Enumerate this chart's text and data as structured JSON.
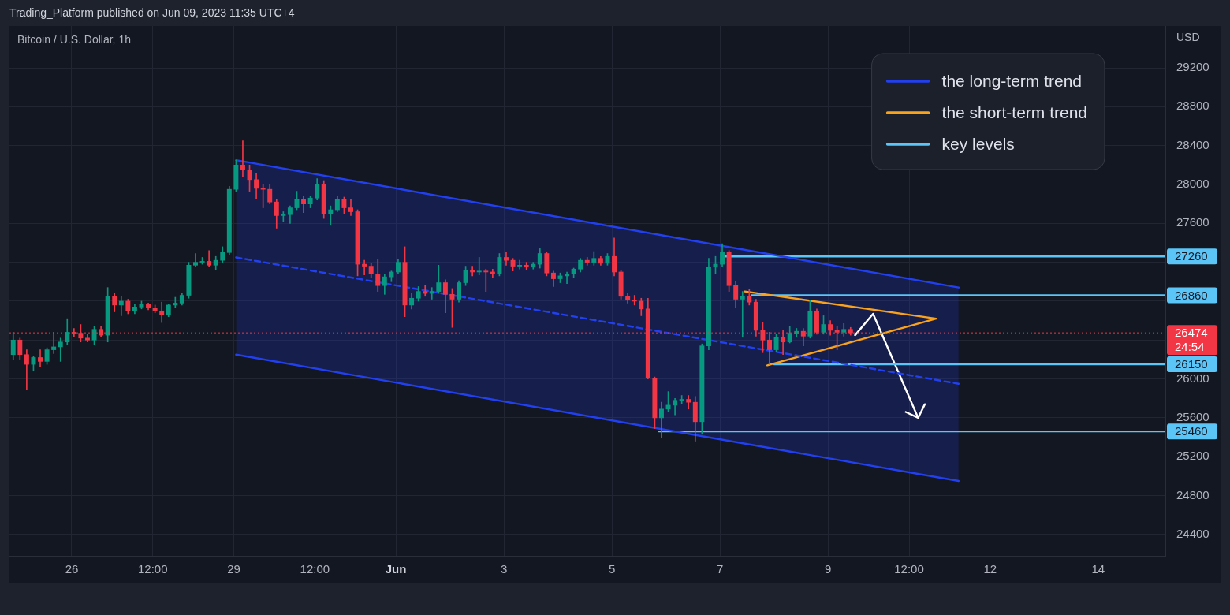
{
  "chart_data": {
    "type": "candlestick",
    "title": "Bitcoin / U.S. Dollar, 1h",
    "ylabel": "USD",
    "annotations": [
      "Trading_Platform published on Jun 09, 2023 11:35 UTC+4"
    ],
    "x": [
      "2023-05-24T22:00",
      "2023-05-25T01:00",
      "2023-05-25T04:00",
      "2023-05-25T07:00",
      "2023-05-25T10:00",
      "2023-05-25T13:00",
      "2023-05-25T16:00",
      "2023-05-25T19:00",
      "2023-05-25T22:00",
      "2023-05-26T01:00",
      "2023-05-26T04:00",
      "2023-05-26T07:00",
      "2023-05-26T10:00",
      "2023-05-26T13:00",
      "2023-05-26T16:00",
      "2023-05-26T19:00",
      "2023-05-26T22:00",
      "2023-05-27T01:00",
      "2023-05-27T04:00",
      "2023-05-27T07:00",
      "2023-05-27T10:00",
      "2023-05-27T13:00",
      "2023-05-27T16:00",
      "2023-05-27T19:00",
      "2023-05-27T22:00",
      "2023-05-28T01:00",
      "2023-05-28T04:00",
      "2023-05-28T07:00",
      "2023-05-28T10:00",
      "2023-05-28T13:00",
      "2023-05-28T16:00",
      "2023-05-28T19:00",
      "2023-05-28T22:00",
      "2023-05-29T01:00",
      "2023-05-29T04:00",
      "2023-05-29T07:00",
      "2023-05-29T10:00",
      "2023-05-29T13:00",
      "2023-05-29T16:00",
      "2023-05-29T19:00",
      "2023-05-29T22:00",
      "2023-05-30T01:00",
      "2023-05-30T04:00",
      "2023-05-30T07:00",
      "2023-05-30T10:00",
      "2023-05-30T13:00",
      "2023-05-30T16:00",
      "2023-05-30T19:00",
      "2023-05-30T22:00",
      "2023-05-31T01:00",
      "2023-05-31T04:00",
      "2023-05-31T07:00",
      "2023-05-31T10:00",
      "2023-05-31T13:00",
      "2023-05-31T16:00",
      "2023-05-31T19:00",
      "2023-05-31T22:00",
      "2023-06-01T01:00",
      "2023-06-01T04:00",
      "2023-06-01T07:00",
      "2023-06-01T10:00",
      "2023-06-01T13:00",
      "2023-06-01T16:00",
      "2023-06-01T19:00",
      "2023-06-01T22:00",
      "2023-06-02T01:00",
      "2023-06-02T04:00",
      "2023-06-02T07:00",
      "2023-06-02T10:00",
      "2023-06-02T13:00",
      "2023-06-02T16:00",
      "2023-06-02T19:00",
      "2023-06-02T22:00",
      "2023-06-03T01:00",
      "2023-06-03T04:00",
      "2023-06-03T07:00",
      "2023-06-03T10:00",
      "2023-06-03T13:00",
      "2023-06-03T16:00",
      "2023-06-03T19:00",
      "2023-06-03T22:00",
      "2023-06-04T01:00",
      "2023-06-04T04:00",
      "2023-06-04T07:00",
      "2023-06-04T10:00",
      "2023-06-04T13:00",
      "2023-06-04T16:00",
      "2023-06-04T19:00",
      "2023-06-04T22:00",
      "2023-06-05T01:00",
      "2023-06-05T04:00",
      "2023-06-05T07:00",
      "2023-06-05T10:00",
      "2023-06-05T13:00",
      "2023-06-05T16:00",
      "2023-06-05T19:00",
      "2023-06-05T22:00",
      "2023-06-06T01:00",
      "2023-06-06T04:00",
      "2023-06-06T07:00",
      "2023-06-06T10:00",
      "2023-06-06T13:00",
      "2023-06-06T16:00",
      "2023-06-06T19:00",
      "2023-06-06T22:00",
      "2023-06-07T01:00",
      "2023-06-07T04:00",
      "2023-06-07T07:00",
      "2023-06-07T10:00",
      "2023-06-07T13:00",
      "2023-06-07T16:00",
      "2023-06-07T19:00",
      "2023-06-07T22:00",
      "2023-06-08T01:00",
      "2023-06-08T04:00",
      "2023-06-08T07:00",
      "2023-06-08T10:00",
      "2023-06-08T13:00",
      "2023-06-08T16:00",
      "2023-06-08T19:00",
      "2023-06-08T22:00",
      "2023-06-09T01:00",
      "2023-06-09T04:00",
      "2023-06-09T07:00",
      "2023-06-09T10:00"
    ],
    "ohlc": [
      [
        26250,
        26480,
        26200,
        26400
      ],
      [
        26400,
        26420,
        26200,
        26250
      ],
      [
        26250,
        26300,
        25890,
        26150
      ],
      [
        26150,
        26230,
        26080,
        26220
      ],
      [
        26220,
        26300,
        26120,
        26180
      ],
      [
        26180,
        26320,
        26150,
        26300
      ],
      [
        26300,
        26480,
        26260,
        26330
      ],
      [
        26330,
        26420,
        26180,
        26380
      ],
      [
        26380,
        26620,
        26350,
        26480
      ],
      [
        26480,
        26520,
        26430,
        26470
      ],
      [
        26470,
        26560,
        26380,
        26420
      ],
      [
        26420,
        26460,
        26380,
        26400
      ],
      [
        26400,
        26540,
        26350,
        26510
      ],
      [
        26510,
        26540,
        26430,
        26450
      ],
      [
        26450,
        26940,
        26380,
        26850
      ],
      [
        26850,
        26880,
        26690,
        26760
      ],
      [
        26760,
        26850,
        26650,
        26800
      ],
      [
        26800,
        26820,
        26670,
        26700
      ],
      [
        26700,
        26770,
        26670,
        26740
      ],
      [
        26740,
        26800,
        26720,
        26770
      ],
      [
        26770,
        26780,
        26710,
        26730
      ],
      [
        26730,
        26760,
        26680,
        26700
      ],
      [
        26700,
        26790,
        26580,
        26660
      ],
      [
        26660,
        26770,
        26640,
        26760
      ],
      [
        26760,
        26840,
        26730,
        26780
      ],
      [
        26780,
        26880,
        26760,
        26860
      ],
      [
        26860,
        27200,
        26830,
        27170
      ],
      [
        27170,
        27290,
        27150,
        27200
      ],
      [
        27200,
        27250,
        27180,
        27210
      ],
      [
        27210,
        27320,
        27150,
        27170
      ],
      [
        27170,
        27260,
        27120,
        27220
      ],
      [
        27220,
        27360,
        27200,
        27300
      ],
      [
        27300,
        27980,
        27280,
        27950
      ],
      [
        27950,
        28250,
        27930,
        28200
      ],
      [
        28200,
        28450,
        28080,
        28150
      ],
      [
        28150,
        28200,
        27930,
        28050
      ],
      [
        28050,
        28110,
        27850,
        27960
      ],
      [
        27960,
        28000,
        27760,
        27950
      ],
      [
        27950,
        28000,
        27800,
        27820
      ],
      [
        27820,
        27850,
        27550,
        27680
      ],
      [
        27680,
        27720,
        27620,
        27690
      ],
      [
        27690,
        27780,
        27600,
        27760
      ],
      [
        27760,
        27930,
        27740,
        27850
      ],
      [
        27850,
        27880,
        27710,
        27800
      ],
      [
        27800,
        27880,
        27760,
        27860
      ],
      [
        27860,
        28060,
        27840,
        28000
      ],
      [
        28000,
        28040,
        27650,
        27700
      ],
      [
        27700,
        27780,
        27580,
        27740
      ],
      [
        27740,
        27880,
        27720,
        27850
      ],
      [
        27850,
        27870,
        27700,
        27760
      ],
      [
        27760,
        27850,
        27680,
        27720
      ],
      [
        27720,
        27740,
        27060,
        27180
      ],
      [
        27180,
        27220,
        27070,
        27160
      ],
      [
        27160,
        27190,
        27040,
        27080
      ],
      [
        27080,
        27230,
        26900,
        26960
      ],
      [
        26960,
        27080,
        26870,
        27050
      ],
      [
        27050,
        27110,
        27000,
        27100
      ],
      [
        27100,
        27230,
        27080,
        27200
      ],
      [
        27200,
        27360,
        26640,
        26760
      ],
      [
        26760,
        26880,
        26720,
        26830
      ],
      [
        26830,
        26950,
        26800,
        26900
      ],
      [
        26900,
        26960,
        26850,
        26880
      ],
      [
        26880,
        26940,
        26820,
        26900
      ],
      [
        26900,
        27170,
        26880,
        26990
      ],
      [
        26990,
        27020,
        26680,
        26870
      ],
      [
        26870,
        26930,
        26530,
        26820
      ],
      [
        26820,
        27010,
        26790,
        26990
      ],
      [
        26990,
        27160,
        26960,
        27120
      ],
      [
        27120,
        27160,
        27060,
        27100
      ],
      [
        27100,
        27250,
        27070,
        27110
      ],
      [
        27110,
        27130,
        26900,
        27100
      ],
      [
        27100,
        27130,
        27040,
        27080
      ],
      [
        27080,
        27290,
        27060,
        27250
      ],
      [
        27250,
        27300,
        27170,
        27220
      ],
      [
        27220,
        27240,
        27110,
        27160
      ],
      [
        27160,
        27220,
        27130,
        27170
      ],
      [
        27170,
        27200,
        27120,
        27150
      ],
      [
        27150,
        27200,
        27130,
        27180
      ],
      [
        27180,
        27340,
        27140,
        27290
      ],
      [
        27290,
        27300,
        27060,
        27090
      ],
      [
        27090,
        27110,
        26950,
        27030
      ],
      [
        27030,
        27090,
        26990,
        27060
      ],
      [
        27060,
        27100,
        26980,
        27080
      ],
      [
        27080,
        27140,
        27040,
        27130
      ],
      [
        27130,
        27240,
        27100,
        27220
      ],
      [
        27220,
        27250,
        27170,
        27200
      ],
      [
        27200,
        27310,
        27170,
        27240
      ],
      [
        27240,
        27260,
        27170,
        27190
      ],
      [
        27190,
        27290,
        27170,
        27260
      ],
      [
        27260,
        27450,
        27060,
        27100
      ],
      [
        27100,
        27120,
        26820,
        26850
      ],
      [
        26850,
        26880,
        26780,
        26810
      ],
      [
        26810,
        26860,
        26760,
        26800
      ],
      [
        26800,
        26830,
        26650,
        26720
      ],
      [
        26720,
        26830,
        26000,
        26010
      ],
      [
        26010,
        26020,
        25490,
        25600
      ],
      [
        25600,
        25760,
        25400,
        25690
      ],
      [
        25690,
        25870,
        25660,
        25730
      ],
      [
        25730,
        25800,
        25630,
        25780
      ],
      [
        25780,
        25830,
        25740,
        25790
      ],
      [
        25790,
        25830,
        25690,
        25760
      ],
      [
        25760,
        25820,
        25360,
        25560
      ],
      [
        25560,
        26360,
        25430,
        26340
      ],
      [
        26340,
        27240,
        26300,
        27150
      ],
      [
        27150,
        27260,
        27080,
        27180
      ],
      [
        27180,
        27390,
        27150,
        27300
      ],
      [
        27300,
        27320,
        26900,
        26960
      ],
      [
        26960,
        27000,
        26730,
        26820
      ],
      [
        26820,
        26900,
        26430,
        26850
      ],
      [
        26850,
        26920,
        26760,
        26790
      ],
      [
        26790,
        26820,
        26440,
        26500
      ],
      [
        26500,
        26580,
        26270,
        26400
      ],
      [
        26400,
        26480,
        26150,
        26300
      ],
      [
        26300,
        26460,
        26280,
        26430
      ],
      [
        26430,
        26500,
        26250,
        26380
      ],
      [
        26380,
        26540,
        26370,
        26470
      ],
      [
        26470,
        26520,
        26430,
        26490
      ],
      [
        26490,
        26520,
        26340,
        26440
      ],
      [
        26440,
        26810,
        26420,
        26700
      ],
      [
        26700,
        26720,
        26460,
        26480
      ],
      [
        26480,
        26650,
        26460,
        26560
      ],
      [
        26560,
        26600,
        26450,
        26500
      ],
      [
        26500,
        26540,
        26300,
        26480
      ],
      [
        26480,
        26570,
        26440,
        26510
      ],
      [
        26510,
        26530,
        26450,
        26474
      ]
    ],
    "colors": [
      "#089981",
      "#f23645",
      "#f23645",
      "#089981",
      "#f23645",
      "#089981",
      "#089981",
      "#089981",
      "#089981",
      "#f23645",
      "#f23645",
      "#f23645",
      "#089981",
      "#f23645",
      "#089981",
      "#f23645",
      "#089981",
      "#f23645",
      "#089981",
      "#089981",
      "#f23645",
      "#f23645",
      "#f23645",
      "#089981",
      "#089981",
      "#089981",
      "#089981",
      "#089981",
      "#089981",
      "#f23645",
      "#089981",
      "#089981",
      "#089981",
      "#089981",
      "#f23645",
      "#f23645",
      "#f23645",
      "#f23645",
      "#f23645",
      "#f23645",
      "#089981",
      "#089981",
      "#089981",
      "#f23645",
      "#089981",
      "#089981",
      "#f23645",
      "#089981",
      "#089981",
      "#f23645",
      "#f23645",
      "#f23645",
      "#f23645",
      "#f23645",
      "#f23645",
      "#089981",
      "#089981",
      "#089981",
      "#f23645",
      "#089981",
      "#089981",
      "#f23645",
      "#089981",
      "#089981",
      "#f23645",
      "#f23645",
      "#089981",
      "#089981",
      "#f23645",
      "#089981",
      "#f23645",
      "#f23645",
      "#089981",
      "#f23645",
      "#f23645",
      "#089981",
      "#f23645",
      "#089981",
      "#089981",
      "#f23645",
      "#f23645",
      "#089981",
      "#089981",
      "#089981",
      "#089981",
      "#f23645",
      "#089981",
      "#f23645",
      "#089981",
      "#f23645",
      "#f23645",
      "#f23645",
      "#f23645",
      "#f23645",
      "#f23645",
      "#f23645",
      "#089981",
      "#089981",
      "#089981",
      "#089981",
      "#f23645",
      "#f23645",
      "#089981",
      "#089981",
      "#089981",
      "#089981",
      "#f23645",
      "#f23645",
      "#089981",
      "#f23645",
      "#f23645",
      "#f23645",
      "#f23645",
      "#089981",
      "#f23645",
      "#089981",
      "#089981",
      "#f23645",
      "#089981",
      "#f23645",
      "#089981",
      "#f23645",
      "#f23645",
      "#089981",
      "#f23645"
    ],
    "series": [
      {
        "name": "the long-term trend",
        "type": "line",
        "color": "#2340f0",
        "line_style": "dashed",
        "x": [
          "2023-05-29T01:00",
          "2023-06-11T10:00"
        ],
        "values": [
          27250,
          25950
        ],
        "lower": [
          26250,
          24950
        ],
        "upper": [
          28250,
          26940
        ]
      },
      {
        "type": "line",
        "color": "#2340f0",
        "x": [
          "2023-05-29T01:00",
          "2023-06-11T10:00"
        ],
        "values": [
          28250,
          26940
        ]
      },
      {
        "type": "line",
        "color": "#2340f0",
        "x": [
          "2023-05-29T01:00",
          "2023-06-11T10:00"
        ],
        "values": [
          26250,
          24950
        ]
      },
      {
        "name": "the short-term trend",
        "type": "line",
        "color": "#f9a21b",
        "x": [
          "2023-06-07T11:00",
          "2023-06-11T00:00",
          "2023-06-07T21:00"
        ],
        "values": [
          26900,
          26620,
          26140
        ]
      },
      {
        "name": "key levels",
        "type": "line",
        "color": "#5bc5f8",
        "x": [
          "2023-06-07T02:00",
          "2023-06-15T05:50"
        ],
        "values": [
          27260,
          27260
        ],
        "value_labels": [
          null,
          "27260"
        ]
      },
      {
        "type": "line",
        "color": "#5bc5f8",
        "x": [
          "2023-06-07T14:00",
          "2023-06-15T05:50"
        ],
        "values": [
          26860,
          26860
        ],
        "value_labels": [
          null,
          "26860"
        ]
      },
      {
        "type": "line",
        "color": "#5bc5f8",
        "x": [
          "2023-06-08T00:00",
          "2023-06-15T05:50"
        ],
        "values": [
          26150,
          26150
        ],
        "value_labels": [
          null,
          "26150"
        ]
      },
      {
        "type": "line",
        "color": "#5bc5f8",
        "x": [
          "2023-06-05T21:00",
          "2023-06-15T05:50"
        ],
        "values": [
          25460,
          25460
        ],
        "value_labels": [
          null,
          "25460"
        ]
      },
      {
        "type": "line",
        "color": "#ffffff",
        "x": [
          "2023-06-09T12:00",
          "2023-06-09T20:00",
          "2023-06-10T16:00",
          "2023-06-10T10:30",
          "2023-06-10T16:00",
          "2023-06-10T19:00"
        ],
        "values": [
          26450,
          26670,
          25600,
          25660,
          25600,
          25740
        ]
      }
    ],
    "ref_lines": [
      {
        "axis": "y",
        "value": 26474,
        "label": "26474\n24:54",
        "color": "#f23645",
        "line_style": "dotted"
      }
    ],
    "xlim": [
      "2023-05-24T20:20",
      "2023-06-15T05:50"
    ],
    "xticks": [
      {
        "value": "2023-05-26",
        "label": "26"
      },
      {
        "value": "2023-05-27T12:00",
        "label": "12:00"
      },
      {
        "value": "2023-05-29",
        "label": "29"
      },
      {
        "value": "2023-05-30T12:00",
        "label": "12:00"
      },
      {
        "value": "2023-06-01",
        "label": "Jun"
      },
      {
        "value": "2023-06-03",
        "label": "3"
      },
      {
        "value": "2023-06-05",
        "label": "5"
      },
      {
        "value": "2023-06-07",
        "label": "7"
      },
      {
        "value": "2023-06-09",
        "label": "9"
      },
      {
        "value": "2023-06-10T12:00",
        "label": "12:00"
      },
      {
        "value": "2023-06-12",
        "label": "12"
      },
      {
        "value": "2023-06-14",
        "label": "14"
      }
    ],
    "ylim": [
      24180,
      29630
    ],
    "yticks": [
      24400,
      24800,
      25200,
      25600,
      26000,
      {
        "value": 26400,
        "label": null
      },
      {
        "value": 26800,
        "label": null
      },
      {
        "value": 27200,
        "label": null
      },
      27600,
      28000,
      28400,
      28800,
      29200
    ],
    "grid": true,
    "legend": "top right",
    "marker": "none"
  }
}
